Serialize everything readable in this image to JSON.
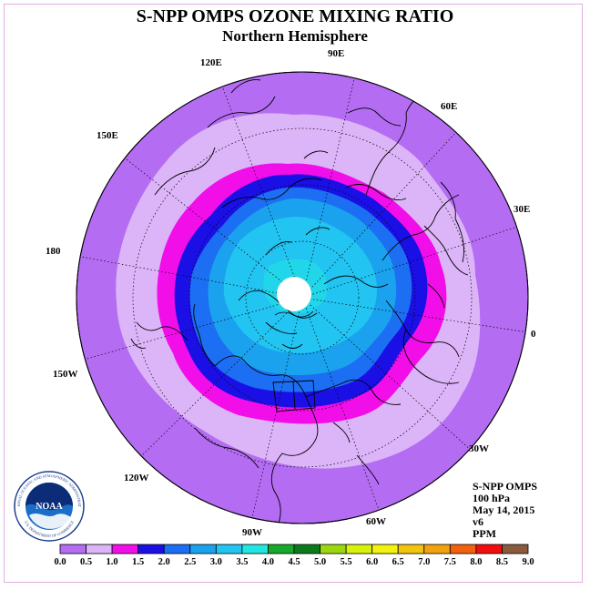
{
  "title": "S-NPP OMPS OZONE MIXING RATIO",
  "subtitle": "Northern Hemisphere",
  "longitude_labels": [
    "90E",
    "60E",
    "30E",
    "0",
    "30W",
    "60W",
    "90W",
    "120W",
    "150W",
    "180",
    "150E",
    "120E"
  ],
  "info": {
    "instrument": "S-NPP OMPS",
    "level": "100 hPa",
    "date": "May 14, 2015",
    "version": "v6",
    "unit": "PPM"
  },
  "legend": {
    "ticks": [
      "0.0",
      "0.5",
      "1.0",
      "1.5",
      "2.0",
      "2.5",
      "3.0",
      "3.5",
      "4.0",
      "4.5",
      "5.0",
      "5.5",
      "6.0",
      "6.5",
      "7.0",
      "7.5",
      "8.0",
      "8.5",
      "9.0"
    ],
    "colors": [
      "#b46cf2",
      "#dcb4f8",
      "#f20ee8",
      "#1a10e6",
      "#1c6ef2",
      "#1aa2ee",
      "#22c4f2",
      "#22e6e2",
      "#16a82a",
      "#0c7a1c",
      "#9ad80e",
      "#d8f20e",
      "#f2f20e",
      "#f2c40e",
      "#f2a20e",
      "#f2620e",
      "#f20e0e",
      "#8c5a3c"
    ]
  },
  "map": {
    "background_color": "#b46cf2",
    "contour_colors": [
      "#dcb4f8",
      "#f20ee8",
      "#1a10e6",
      "#1c6ef2",
      "#1aa2ee",
      "#22c4f2"
    ]
  },
  "logo": {
    "name": "NOAA",
    "ring_text": "NATIONAL OCEANIC AND ATMOSPHERIC ADMINISTRATION",
    "bottom_text": "U.S. DEPARTMENT OF COMMERCE"
  }
}
